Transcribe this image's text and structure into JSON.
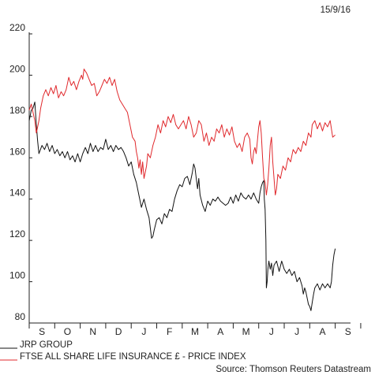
{
  "chart_data": {
    "type": "line",
    "date": "15/9/16",
    "source": "Source: Thomson Reuters Datastream",
    "ylim": [
      80,
      220
    ],
    "yticks": [
      80,
      100,
      120,
      140,
      160,
      180,
      200,
      220
    ],
    "x_tick_labels": [
      "S",
      "O",
      "N",
      "D",
      "J",
      "F",
      "M",
      "A",
      "M",
      "J",
      "J",
      "A",
      "S"
    ],
    "xlim": [
      0,
      12.6
    ],
    "grid": false,
    "legend_position": "bottom",
    "colors": {
      "jrp": "#111111",
      "ftse": "#e0282c",
      "axis": "#222222"
    },
    "series": [
      {
        "name": "JRP GROUP",
        "key": "jrp",
        "points": [
          [
            0.0,
            178
          ],
          [
            0.08,
            183
          ],
          [
            0.15,
            184
          ],
          [
            0.22,
            187
          ],
          [
            0.28,
            176
          ],
          [
            0.33,
            168
          ],
          [
            0.38,
            162
          ],
          [
            0.5,
            166
          ],
          [
            0.6,
            164
          ],
          [
            0.7,
            167
          ],
          [
            0.8,
            163
          ],
          [
            0.9,
            166
          ],
          [
            1.0,
            162
          ],
          [
            1.1,
            164
          ],
          [
            1.2,
            161
          ],
          [
            1.3,
            163
          ],
          [
            1.4,
            160
          ],
          [
            1.5,
            163
          ],
          [
            1.6,
            159
          ],
          [
            1.7,
            161
          ],
          [
            1.8,
            158
          ],
          [
            1.9,
            162
          ],
          [
            2.0,
            158
          ],
          [
            2.1,
            162
          ],
          [
            2.2,
            165
          ],
          [
            2.3,
            162
          ],
          [
            2.4,
            167
          ],
          [
            2.5,
            163
          ],
          [
            2.6,
            166
          ],
          [
            2.7,
            163
          ],
          [
            2.8,
            165
          ],
          [
            2.9,
            164
          ],
          [
            3.0,
            169
          ],
          [
            3.1,
            164
          ],
          [
            3.2,
            166
          ],
          [
            3.3,
            163
          ],
          [
            3.4,
            166
          ],
          [
            3.5,
            164
          ],
          [
            3.6,
            165
          ],
          [
            3.7,
            163
          ],
          [
            3.8,
            160
          ],
          [
            3.9,
            156
          ],
          [
            4.0,
            158
          ],
          [
            4.1,
            152
          ],
          [
            4.2,
            148
          ],
          [
            4.3,
            142
          ],
          [
            4.4,
            136
          ],
          [
            4.5,
            140
          ],
          [
            4.6,
            135
          ],
          [
            4.7,
            131
          ],
          [
            4.75,
            126
          ],
          [
            4.8,
            121
          ],
          [
            4.85,
            122
          ],
          [
            4.9,
            125
          ],
          [
            5.0,
            130
          ],
          [
            5.1,
            131
          ],
          [
            5.2,
            128
          ],
          [
            5.3,
            133
          ],
          [
            5.4,
            131
          ],
          [
            5.5,
            135
          ],
          [
            5.6,
            134
          ],
          [
            5.7,
            140
          ],
          [
            5.8,
            144
          ],
          [
            5.9,
            147
          ],
          [
            6.0,
            146
          ],
          [
            6.1,
            150
          ],
          [
            6.2,
            151
          ],
          [
            6.3,
            147
          ],
          [
            6.4,
            153
          ],
          [
            6.45,
            157
          ],
          [
            6.5,
            155
          ],
          [
            6.55,
            150
          ],
          [
            6.6,
            145
          ],
          [
            6.65,
            150
          ],
          [
            6.7,
            142
          ],
          [
            6.8,
            137
          ],
          [
            6.9,
            134
          ],
          [
            7.0,
            139
          ],
          [
            7.1,
            137
          ],
          [
            7.2,
            140
          ],
          [
            7.3,
            139
          ],
          [
            7.4,
            141
          ],
          [
            7.5,
            139
          ],
          [
            7.6,
            138
          ],
          [
            7.7,
            137
          ],
          [
            7.8,
            138
          ],
          [
            7.9,
            141
          ],
          [
            8.0,
            138
          ],
          [
            8.1,
            142
          ],
          [
            8.2,
            139
          ],
          [
            8.3,
            143
          ],
          [
            8.4,
            141
          ],
          [
            8.5,
            140
          ],
          [
            8.6,
            142
          ],
          [
            8.7,
            140
          ],
          [
            8.8,
            143
          ],
          [
            8.9,
            140
          ],
          [
            9.0,
            138
          ],
          [
            9.05,
            143
          ],
          [
            9.1,
            146
          ],
          [
            9.15,
            148
          ],
          [
            9.2,
            149
          ],
          [
            9.22,
            140
          ],
          [
            9.25,
            135
          ],
          [
            9.28,
            120
          ],
          [
            9.3,
            97
          ],
          [
            9.33,
            100
          ],
          [
            9.36,
            106
          ],
          [
            9.4,
            110
          ],
          [
            9.45,
            106
          ],
          [
            9.5,
            109
          ],
          [
            9.55,
            103
          ],
          [
            9.6,
            108
          ],
          [
            9.7,
            110
          ],
          [
            9.8,
            105
          ],
          [
            9.9,
            110
          ],
          [
            10.0,
            106
          ],
          [
            10.1,
            104
          ],
          [
            10.2,
            106
          ],
          [
            10.3,
            103
          ],
          [
            10.4,
            105
          ],
          [
            10.5,
            100
          ],
          [
            10.6,
            102
          ],
          [
            10.7,
            98
          ],
          [
            10.75,
            94
          ],
          [
            10.8,
            97
          ],
          [
            10.85,
            95
          ],
          [
            10.9,
            92
          ],
          [
            10.95,
            89
          ],
          [
            11.0,
            88
          ],
          [
            11.05,
            86
          ],
          [
            11.1,
            90
          ],
          [
            11.15,
            94
          ],
          [
            11.2,
            97
          ],
          [
            11.3,
            99
          ],
          [
            11.4,
            96
          ],
          [
            11.5,
            99
          ],
          [
            11.6,
            97
          ],
          [
            11.7,
            99
          ],
          [
            11.8,
            97
          ],
          [
            11.85,
            100
          ],
          [
            11.9,
            108
          ],
          [
            11.95,
            113
          ],
          [
            12.0,
            116
          ]
        ]
      },
      {
        "name": "FTSE ALL SHARE LIFE INSURANCE £ - PRICE INDEX",
        "key": "ftse",
        "points": [
          [
            0.0,
            183
          ],
          [
            0.08,
            186
          ],
          [
            0.15,
            182
          ],
          [
            0.22,
            178
          ],
          [
            0.28,
            172
          ],
          [
            0.33,
            175
          ],
          [
            0.38,
            178
          ],
          [
            0.45,
            184
          ],
          [
            0.55,
            190
          ],
          [
            0.65,
            193
          ],
          [
            0.75,
            190
          ],
          [
            0.85,
            194
          ],
          [
            0.95,
            191
          ],
          [
            1.05,
            195
          ],
          [
            1.15,
            189
          ],
          [
            1.25,
            192
          ],
          [
            1.35,
            190
          ],
          [
            1.45,
            193
          ],
          [
            1.55,
            199
          ],
          [
            1.65,
            195
          ],
          [
            1.75,
            197
          ],
          [
            1.85,
            193
          ],
          [
            1.95,
            197
          ],
          [
            2.05,
            200
          ],
          [
            2.1,
            198
          ],
          [
            2.15,
            203
          ],
          [
            2.25,
            201
          ],
          [
            2.35,
            198
          ],
          [
            2.45,
            195
          ],
          [
            2.55,
            196
          ],
          [
            2.65,
            190
          ],
          [
            2.75,
            192
          ],
          [
            2.85,
            195
          ],
          [
            2.95,
            198
          ],
          [
            3.05,
            196
          ],
          [
            3.15,
            199
          ],
          [
            3.25,
            195
          ],
          [
            3.35,
            198
          ],
          [
            3.45,
            192
          ],
          [
            3.55,
            188
          ],
          [
            3.65,
            186
          ],
          [
            3.75,
            184
          ],
          [
            3.85,
            182
          ],
          [
            3.95,
            176
          ],
          [
            4.05,
            170
          ],
          [
            4.15,
            168
          ],
          [
            4.2,
            163
          ],
          [
            4.25,
            160
          ],
          [
            4.3,
            155
          ],
          [
            4.35,
            159
          ],
          [
            4.4,
            152
          ],
          [
            4.45,
            158
          ],
          [
            4.5,
            150
          ],
          [
            4.55,
            153
          ],
          [
            4.6,
            156
          ],
          [
            4.65,
            162
          ],
          [
            4.75,
            160
          ],
          [
            4.85,
            166
          ],
          [
            4.95,
            170
          ],
          [
            5.05,
            176
          ],
          [
            5.15,
            172
          ],
          [
            5.25,
            178
          ],
          [
            5.35,
            175
          ],
          [
            5.45,
            180
          ],
          [
            5.55,
            177
          ],
          [
            5.65,
            181
          ],
          [
            5.75,
            176
          ],
          [
            5.85,
            174
          ],
          [
            5.95,
            176
          ],
          [
            6.05,
            178
          ],
          [
            6.15,
            174
          ],
          [
            6.25,
            180
          ],
          [
            6.35,
            176
          ],
          [
            6.45,
            170
          ],
          [
            6.55,
            172
          ],
          [
            6.65,
            178
          ],
          [
            6.75,
            176
          ],
          [
            6.85,
            168
          ],
          [
            6.95,
            172
          ],
          [
            7.05,
            166
          ],
          [
            7.15,
            170
          ],
          [
            7.25,
            168
          ],
          [
            7.35,
            174
          ],
          [
            7.45,
            172
          ],
          [
            7.55,
            176
          ],
          [
            7.65,
            170
          ],
          [
            7.75,
            174
          ],
          [
            7.85,
            171
          ],
          [
            7.95,
            175
          ],
          [
            8.05,
            168
          ],
          [
            8.15,
            165
          ],
          [
            8.25,
            167
          ],
          [
            8.35,
            163
          ],
          [
            8.45,
            170
          ],
          [
            8.55,
            172
          ],
          [
            8.65,
            169
          ],
          [
            8.7,
            160
          ],
          [
            8.75,
            157
          ],
          [
            8.8,
            163
          ],
          [
            8.85,
            165
          ],
          [
            8.9,
            162
          ],
          [
            9.0,
            175
          ],
          [
            9.05,
            178
          ],
          [
            9.1,
            172
          ],
          [
            9.15,
            160
          ],
          [
            9.2,
            150
          ],
          [
            9.25,
            148
          ],
          [
            9.3,
            142
          ],
          [
            9.35,
            147
          ],
          [
            9.4,
            155
          ],
          [
            9.45,
            166
          ],
          [
            9.5,
            170
          ],
          [
            9.55,
            158
          ],
          [
            9.6,
            150
          ],
          [
            9.65,
            142
          ],
          [
            9.7,
            145
          ],
          [
            9.75,
            152
          ],
          [
            9.85,
            150
          ],
          [
            9.95,
            156
          ],
          [
            10.05,
            154
          ],
          [
            10.15,
            160
          ],
          [
            10.25,
            158
          ],
          [
            10.35,
            164
          ],
          [
            10.45,
            162
          ],
          [
            10.55,
            165
          ],
          [
            10.65,
            163
          ],
          [
            10.75,
            168
          ],
          [
            10.85,
            166
          ],
          [
            10.95,
            172
          ],
          [
            11.05,
            170
          ],
          [
            11.1,
            176
          ],
          [
            11.2,
            178
          ],
          [
            11.3,
            174
          ],
          [
            11.4,
            177
          ],
          [
            11.5,
            173
          ],
          [
            11.6,
            177
          ],
          [
            11.7,
            175
          ],
          [
            11.8,
            178
          ],
          [
            11.9,
            170
          ],
          [
            12.0,
            171
          ]
        ]
      }
    ]
  }
}
